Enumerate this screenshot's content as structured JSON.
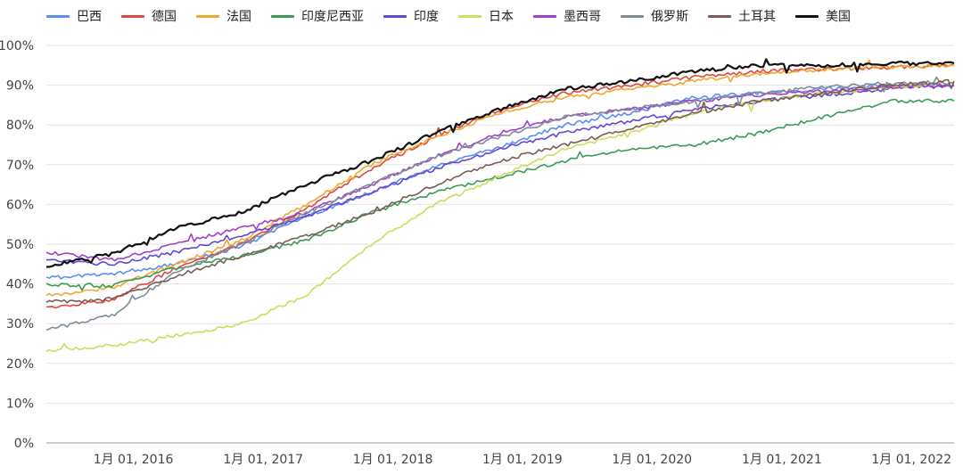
{
  "chart_data": {
    "type": "line",
    "title": "",
    "xlabel": "",
    "ylabel": "",
    "ylim": [
      0,
      100
    ],
    "y_ticks": [
      "0%",
      "10%",
      "20%",
      "30%",
      "40%",
      "50%",
      "60%",
      "70%",
      "80%",
      "90%",
      "100%"
    ],
    "x_range": [
      "2015-05",
      "2022-05"
    ],
    "x_ticks": [
      "1月 01, 2016",
      "1月 01, 2017",
      "1月 01, 2018",
      "1月 01, 2019",
      "1月 01, 2020",
      "1月 01, 2021",
      "1月 01, 2022"
    ],
    "grid": "horizontal",
    "legend_position": "top",
    "series": [
      {
        "name": "巴西",
        "color": "#5b8ff0",
        "x": [
          "2015-05-01",
          "2015-11-01",
          "2016-05-01",
          "2016-11-01",
          "2017-05-01",
          "2017-11-01",
          "2018-05-01",
          "2018-11-01",
          "2019-05-01",
          "2019-11-01",
          "2020-05-01",
          "2020-11-01",
          "2021-05-01",
          "2021-11-01",
          "2022-05-01"
        ],
        "values": [
          41.5,
          42.5,
          45,
          49.5,
          57,
          63,
          69.5,
          74.5,
          80,
          83,
          87,
          88,
          89,
          90,
          90
        ]
      },
      {
        "name": "德国",
        "color": "#e0473f",
        "x": [
          "2015-05-01",
          "2015-11-01",
          "2016-05-01",
          "2016-11-01",
          "2017-05-01",
          "2017-11-01",
          "2018-05-01",
          "2018-11-01",
          "2019-05-01",
          "2019-11-01",
          "2020-05-01",
          "2020-11-01",
          "2021-05-01",
          "2021-11-01",
          "2022-05-01"
        ],
        "values": [
          34,
          36,
          44,
          50,
          59,
          69,
          77,
          84,
          88,
          90,
          92,
          93.5,
          94,
          94.5,
          95
        ]
      },
      {
        "name": "法国",
        "color": "#f0a830",
        "x": [
          "2015-05-01",
          "2015-11-01",
          "2016-05-01",
          "2016-11-01",
          "2017-05-01",
          "2017-11-01",
          "2018-05-01",
          "2018-11-01",
          "2019-05-01",
          "2019-11-01",
          "2020-05-01",
          "2020-11-01",
          "2021-05-01",
          "2021-11-01",
          "2022-05-01"
        ],
        "values": [
          37,
          39,
          45,
          51,
          60,
          70,
          77,
          83,
          87,
          89,
          91,
          93,
          94,
          94.5,
          95
        ]
      },
      {
        "name": "印度尼西亚",
        "color": "#3a9a56",
        "x": [
          "2015-05-01",
          "2015-11-01",
          "2016-05-01",
          "2016-11-01",
          "2017-05-01",
          "2017-11-01",
          "2018-05-01",
          "2018-11-01",
          "2019-05-01",
          "2019-11-01",
          "2020-05-01",
          "2020-11-01",
          "2021-05-01",
          "2021-11-01",
          "2022-05-01"
        ],
        "values": [
          40,
          39.5,
          44,
          47,
          51,
          58,
          63,
          67,
          71,
          74,
          75,
          78,
          82,
          86,
          86
        ]
      },
      {
        "name": "印度",
        "color": "#6446d2",
        "x": [
          "2015-05-01",
          "2015-11-01",
          "2016-05-01",
          "2016-11-01",
          "2017-05-01",
          "2017-11-01",
          "2018-05-01",
          "2018-11-01",
          "2019-05-01",
          "2019-11-01",
          "2020-05-01",
          "2020-11-01",
          "2021-05-01",
          "2021-11-01",
          "2022-05-01"
        ],
        "values": [
          46,
          45,
          48,
          52,
          57,
          63,
          69,
          74,
          78,
          81,
          84,
          86,
          87.5,
          89,
          90
        ]
      },
      {
        "name": "日本",
        "color": "#cddc5b",
        "x": [
          "2015-05-01",
          "2015-11-01",
          "2016-05-01",
          "2016-11-01",
          "2017-05-01",
          "2017-11-01",
          "2018-05-01",
          "2018-11-01",
          "2019-05-01",
          "2019-11-01",
          "2020-05-01",
          "2020-11-01",
          "2021-05-01",
          "2021-11-01",
          "2022-05-01"
        ],
        "values": [
          23,
          24.5,
          27,
          30,
          37,
          50,
          60,
          67,
          74,
          78,
          83,
          86,
          88,
          89.5,
          90.5
        ]
      },
      {
        "name": "墨西哥",
        "color": "#a440c8",
        "x": [
          "2015-05-01",
          "2015-11-01",
          "2016-05-01",
          "2016-11-01",
          "2017-05-01",
          "2017-11-01",
          "2018-05-01",
          "2018-11-01",
          "2019-05-01",
          "2019-11-01",
          "2020-05-01",
          "2020-11-01",
          "2021-05-01",
          "2021-11-01",
          "2022-05-01"
        ],
        "values": [
          48,
          46,
          50,
          54,
          58,
          65,
          72,
          78,
          82,
          84,
          86,
          87.5,
          88.5,
          89.5,
          90
        ]
      },
      {
        "name": "俄罗斯",
        "color": "#7f8c99",
        "x": [
          "2015-05-01",
          "2015-11-01",
          "2016-05-01",
          "2016-11-01",
          "2017-05-01",
          "2017-11-01",
          "2018-05-01",
          "2018-11-01",
          "2019-05-01",
          "2019-11-01",
          "2020-05-01",
          "2020-11-01",
          "2021-05-01",
          "2021-11-01",
          "2022-05-01"
        ],
        "values": [
          28.5,
          32,
          43,
          50,
          58,
          65,
          72,
          77,
          82,
          84,
          86,
          88,
          89.5,
          90.5,
          90.5
        ]
      },
      {
        "name": "土耳其",
        "color": "#7a5c55",
        "x": [
          "2015-05-01",
          "2015-11-01",
          "2016-05-01",
          "2016-11-01",
          "2017-05-01",
          "2017-11-01",
          "2018-05-01",
          "2018-11-01",
          "2019-05-01",
          "2019-11-01",
          "2020-05-01",
          "2020-11-01",
          "2021-05-01",
          "2021-11-01",
          "2022-05-01"
        ],
        "values": [
          35.5,
          36,
          42,
          47,
          52,
          58,
          65,
          71,
          75,
          79,
          83,
          86,
          88,
          90,
          91
        ]
      },
      {
        "name": "美国",
        "color": "#111111",
        "x": [
          "2015-05-01",
          "2015-11-01",
          "2016-05-01",
          "2016-11-01",
          "2017-05-01",
          "2017-11-01",
          "2018-05-01",
          "2018-11-01",
          "2019-05-01",
          "2019-11-01",
          "2020-05-01",
          "2020-11-01",
          "2021-05-01",
          "2021-11-01",
          "2022-05-01"
        ],
        "values": [
          44.5,
          47.5,
          54,
          58,
          65,
          71,
          78,
          84,
          89,
          91,
          93.5,
          95,
          95,
          95.5,
          95.5
        ]
      }
    ]
  }
}
